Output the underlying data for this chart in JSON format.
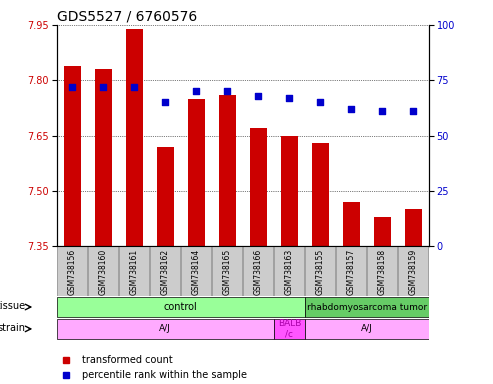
{
  "title": "GDS5527 / 6760576",
  "samples": [
    "GSM738156",
    "GSM738160",
    "GSM738161",
    "GSM738162",
    "GSM738164",
    "GSM738165",
    "GSM738166",
    "GSM738163",
    "GSM738155",
    "GSM738157",
    "GSM738158",
    "GSM738159"
  ],
  "bar_values": [
    7.84,
    7.83,
    7.94,
    7.62,
    7.75,
    7.76,
    7.67,
    7.65,
    7.63,
    7.47,
    7.43,
    7.45
  ],
  "percentile_values": [
    72,
    72,
    72,
    65,
    70,
    70,
    68,
    67,
    65,
    62,
    61,
    61
  ],
  "y_min": 7.35,
  "y_max": 7.95,
  "y_ticks": [
    7.35,
    7.5,
    7.65,
    7.8,
    7.95
  ],
  "y2_ticks": [
    0,
    25,
    50,
    75,
    100
  ],
  "bar_color": "#cc0000",
  "dot_color": "#0000cc",
  "tissue_labels": [
    {
      "text": "control",
      "start": 0,
      "end": 7,
      "color": "#99ff99"
    },
    {
      "text": "rhabdomyosarcoma tumor",
      "start": 8,
      "end": 11,
      "color": "#66cc66"
    }
  ],
  "strain_labels": [
    {
      "text": "A/J",
      "start": 0,
      "end": 6,
      "color": "#ffaaff"
    },
    {
      "text": "BALB\n/c",
      "start": 7,
      "end": 7,
      "color": "#ff55ff"
    },
    {
      "text": "A/J",
      "start": 8,
      "end": 11,
      "color": "#ffaaff"
    }
  ],
  "tissue_row_label": "tissue",
  "strain_row_label": "strain",
  "legend_bar_label": "transformed count",
  "legend_dot_label": "percentile rank within the sample",
  "background_color": "#ffffff",
  "plot_bg_color": "#ffffff",
  "title_fontsize": 10,
  "tick_fontsize": 7,
  "sample_label_fontsize": 5.5,
  "annotation_fontsize": 7,
  "legend_fontsize": 7
}
